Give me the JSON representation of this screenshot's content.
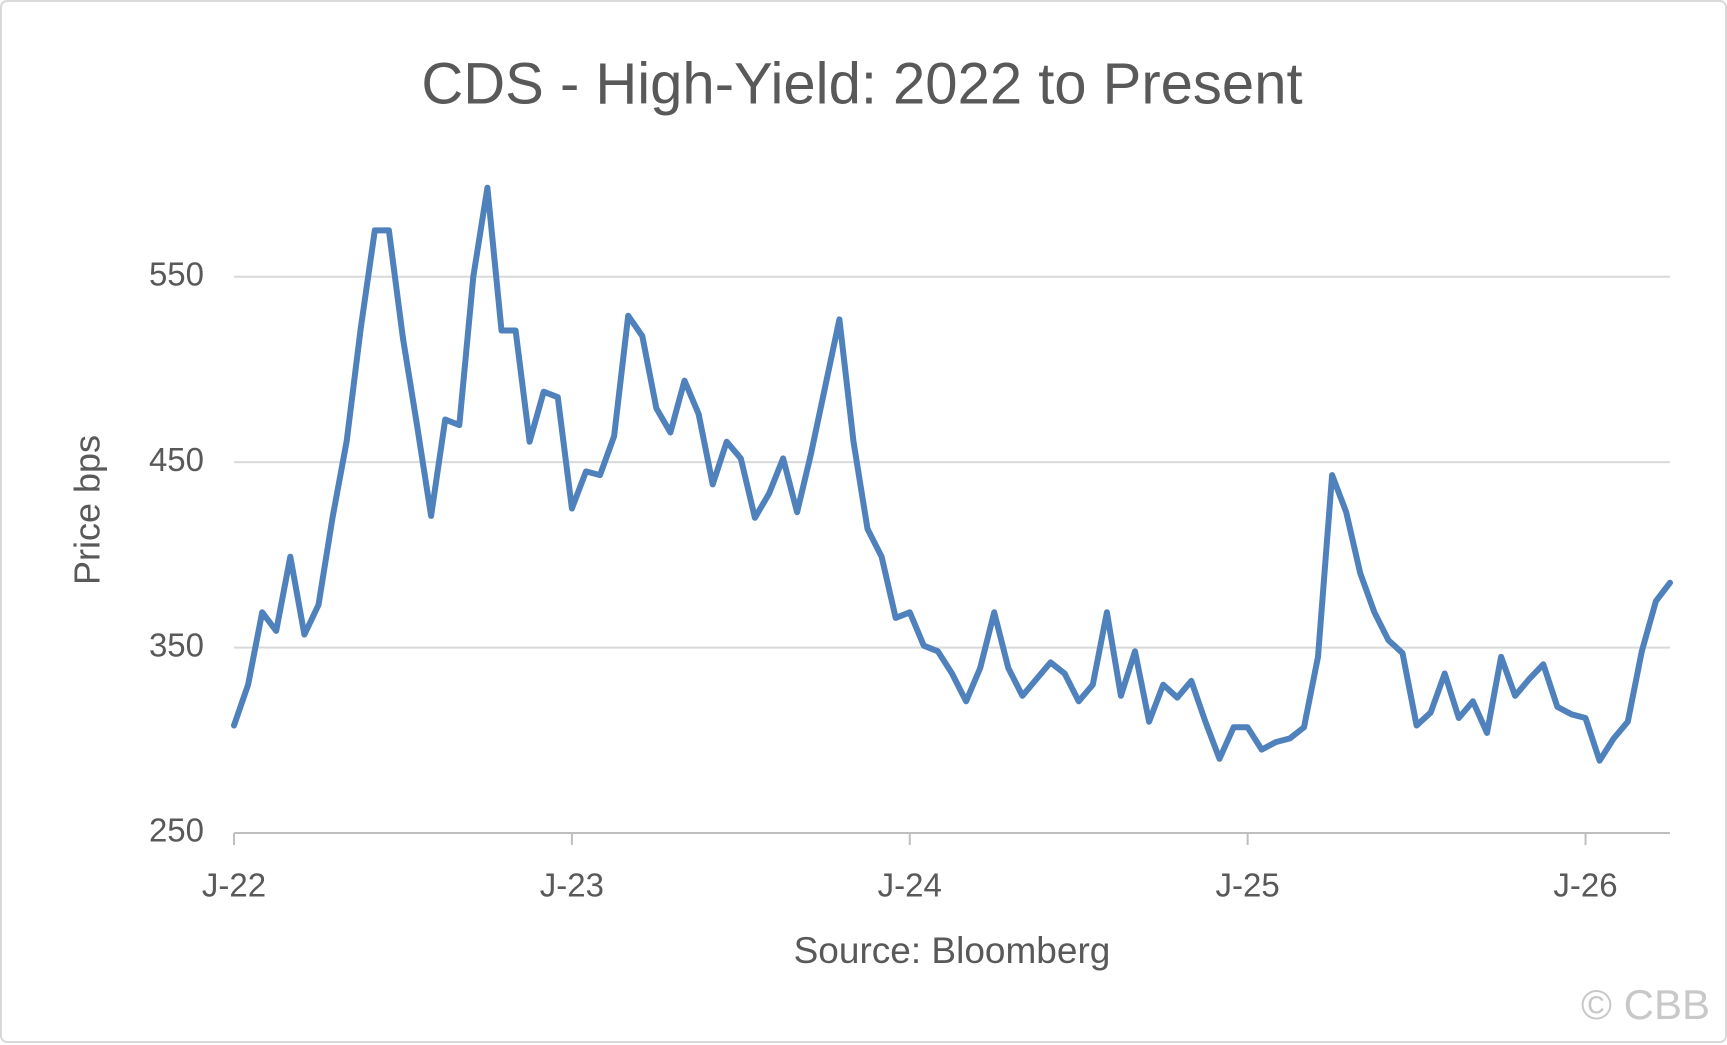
{
  "chart_data": {
    "type": "line",
    "title": "CDS - High-Yield: 2022 to Present",
    "y_label": "Price bps",
    "x_label": "Source: Bloomberg",
    "watermark": "© CBB",
    "color": "#4f81bd",
    "grid": true,
    "ylim": [
      250,
      600
    ],
    "yticks": [
      250,
      350,
      450,
      550
    ],
    "categories": [
      "J-22",
      null,
      null,
      null,
      null,
      null,
      null,
      null,
      null,
      null,
      null,
      null,
      null,
      null,
      null,
      null,
      null,
      null,
      null,
      null,
      null,
      null,
      null,
      null,
      "J-23",
      null,
      null,
      null,
      null,
      null,
      null,
      null,
      null,
      null,
      null,
      null,
      null,
      null,
      null,
      null,
      null,
      null,
      null,
      null,
      null,
      null,
      null,
      null,
      "J-24",
      null,
      null,
      null,
      null,
      null,
      null,
      null,
      null,
      null,
      null,
      null,
      null,
      null,
      null,
      null,
      null,
      null,
      null,
      null,
      null,
      null,
      null,
      null,
      "J-25",
      null,
      null,
      null,
      null,
      null,
      null,
      null,
      null,
      null,
      null,
      null,
      null,
      null,
      null,
      null,
      null,
      null,
      null,
      null,
      null,
      null,
      null,
      null,
      "J-26",
      null,
      null,
      null,
      null,
      null,
      null
    ],
    "values": [
      308,
      330,
      369,
      359,
      399,
      357,
      373,
      420,
      461,
      522,
      575,
      575,
      517,
      470,
      421,
      473,
      470,
      550,
      598,
      521,
      521,
      461,
      488,
      485,
      425,
      445,
      443,
      464,
      529,
      518,
      479,
      466,
      494,
      476,
      438,
      461,
      452,
      420,
      433,
      452,
      423,
      455,
      491,
      527,
      461,
      414,
      399,
      366,
      369,
      351,
      348,
      336,
      321,
      339,
      369,
      339,
      324,
      333,
      342,
      336,
      321,
      330,
      369,
      324,
      348,
      310,
      330,
      323,
      332,
      310,
      290,
      307,
      307,
      295,
      299,
      301,
      307,
      345,
      443,
      423,
      390,
      369,
      354,
      347,
      308,
      315,
      336,
      312,
      321,
      304,
      345,
      324,
      333,
      341,
      318,
      314,
      312,
      289,
      301,
      310,
      348,
      375,
      385
    ]
  }
}
